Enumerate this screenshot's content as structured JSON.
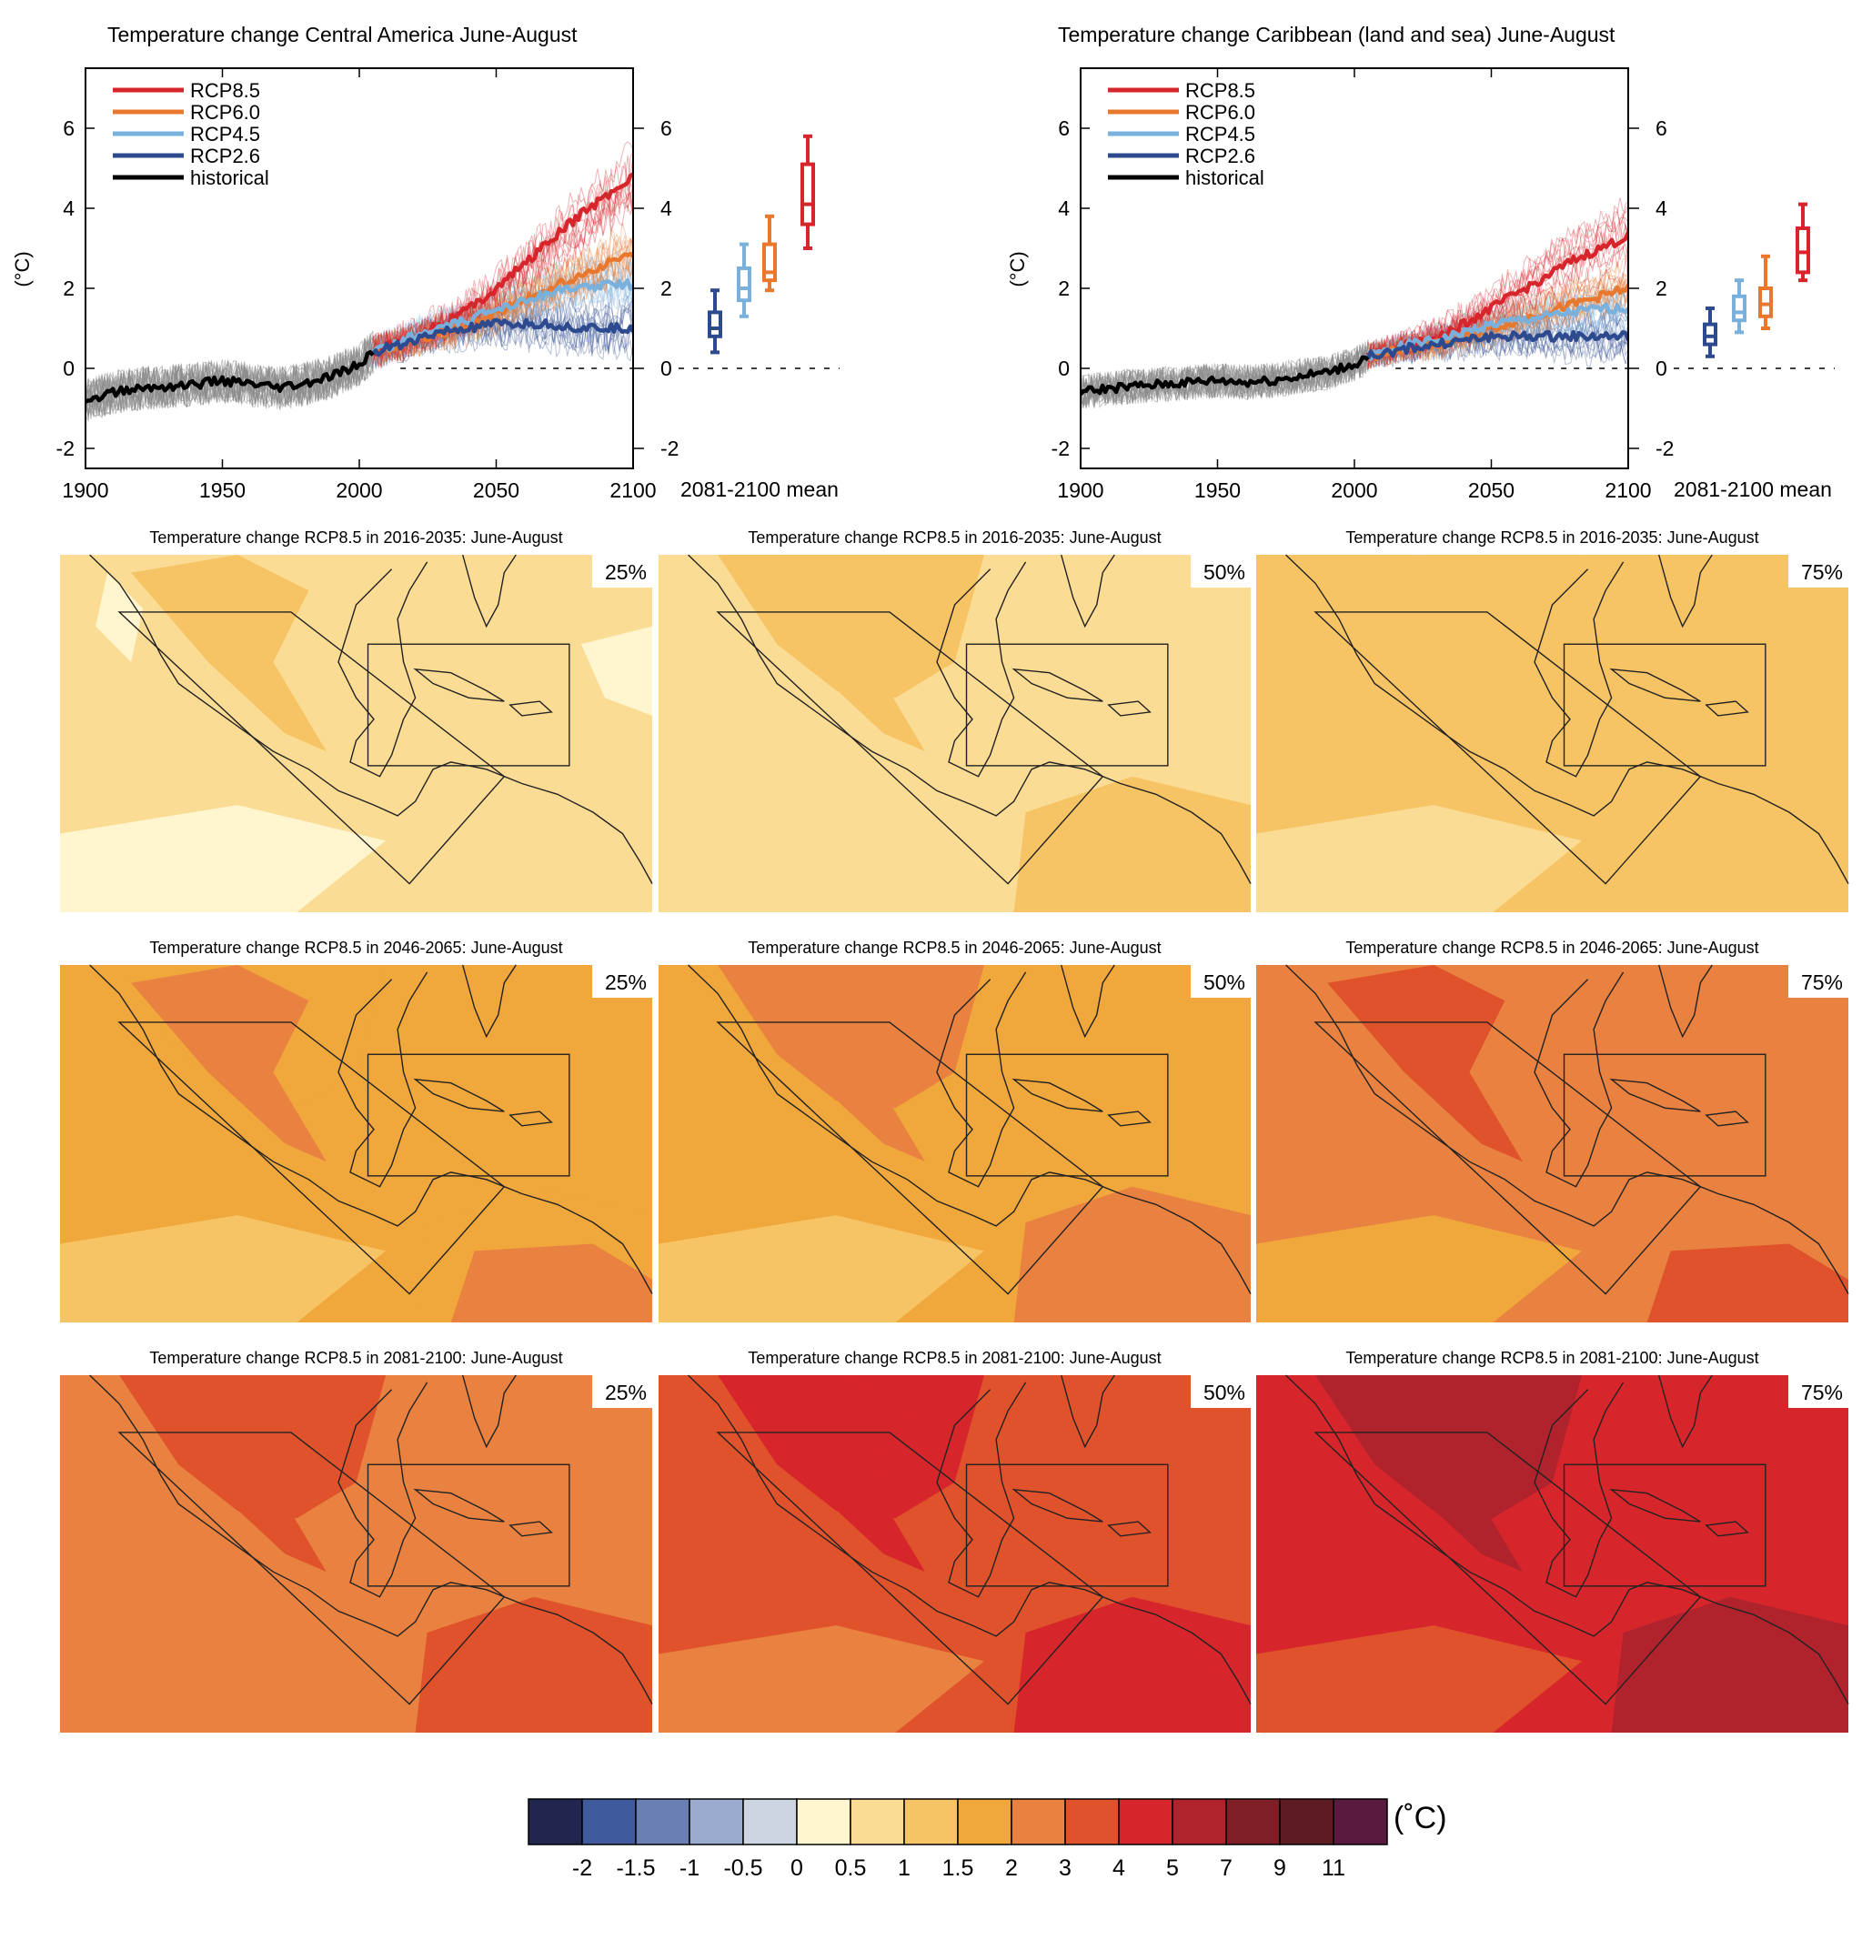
{
  "colors": {
    "rcp85": "#d7262b",
    "rcp60": "#e9782f",
    "rcp45": "#7ab0dc",
    "rcp26": "#2e4a8e",
    "historical": "#000000",
    "historical_spread": "#8a8a8a"
  },
  "chart_data": [
    {
      "type": "line",
      "title": "Temperature change Central America June-August",
      "ylabel": "(°C)",
      "xlabel": "",
      "xlim": [
        1900,
        2100
      ],
      "ylim": [
        -2.5,
        7.5
      ],
      "xticks": [
        1900,
        1950,
        2000,
        2050,
        2100
      ],
      "yticks": [
        -2,
        0,
        2,
        4,
        6
      ],
      "legend_position": "top-left",
      "series": [
        {
          "name": "RCP8.5",
          "key": "rcp85",
          "x": [
            2005,
            2020,
            2030,
            2040,
            2050,
            2060,
            2070,
            2080,
            2090,
            2100
          ],
          "values": [
            0.4,
            0.8,
            1.1,
            1.5,
            2.0,
            2.6,
            3.2,
            3.8,
            4.3,
            4.8
          ]
        },
        {
          "name": "RCP6.0",
          "key": "rcp60",
          "x": [
            2005,
            2020,
            2030,
            2040,
            2050,
            2060,
            2070,
            2080,
            2090,
            2100
          ],
          "values": [
            0.4,
            0.7,
            0.9,
            1.1,
            1.4,
            1.7,
            2.0,
            2.3,
            2.6,
            2.9
          ]
        },
        {
          "name": "RCP4.5",
          "key": "rcp45",
          "x": [
            2005,
            2020,
            2030,
            2040,
            2050,
            2060,
            2070,
            2080,
            2090,
            2100
          ],
          "values": [
            0.4,
            0.8,
            1.0,
            1.2,
            1.5,
            1.7,
            1.9,
            2.0,
            2.1,
            2.1
          ]
        },
        {
          "name": "RCP2.6",
          "key": "rcp26",
          "x": [
            2005,
            2020,
            2030,
            2040,
            2050,
            2060,
            2070,
            2080,
            2090,
            2100
          ],
          "values": [
            0.4,
            0.7,
            0.9,
            1.0,
            1.1,
            1.1,
            1.1,
            1.0,
            1.0,
            1.0
          ]
        },
        {
          "name": "historical",
          "key": "historical",
          "x": [
            1900,
            1910,
            1920,
            1930,
            1940,
            1950,
            1960,
            1970,
            1980,
            1990,
            2000,
            2005
          ],
          "values": [
            -0.8,
            -0.6,
            -0.5,
            -0.45,
            -0.4,
            -0.3,
            -0.4,
            -0.5,
            -0.4,
            -0.2,
            0.1,
            0.4
          ]
        }
      ],
      "boxplot": {
        "label": "2081-2100 mean",
        "boxes": [
          {
            "key": "rcp26",
            "min": 0.4,
            "q1": 0.8,
            "median": 1.0,
            "q3": 1.4,
            "max": 1.95
          },
          {
            "key": "rcp45",
            "min": 1.3,
            "q1": 1.7,
            "median": 2.0,
            "q3": 2.5,
            "max": 3.1
          },
          {
            "key": "rcp60",
            "min": 1.95,
            "q1": 2.2,
            "median": 2.4,
            "q3": 3.1,
            "max": 3.8
          },
          {
            "key": "rcp85",
            "min": 3.0,
            "q1": 3.6,
            "median": 4.1,
            "q3": 5.1,
            "max": 5.8
          }
        ]
      }
    },
    {
      "type": "line",
      "title": "Temperature change Caribbean (land and sea) June-August",
      "ylabel": "(°C)",
      "xlabel": "",
      "xlim": [
        1900,
        2100
      ],
      "ylim": [
        -2.5,
        7.5
      ],
      "xticks": [
        1900,
        1950,
        2000,
        2050,
        2100
      ],
      "yticks": [
        -2,
        0,
        2,
        4,
        6
      ],
      "legend_position": "top-left",
      "series": [
        {
          "name": "RCP8.5",
          "key": "rcp85",
          "x": [
            2005,
            2020,
            2030,
            2040,
            2050,
            2060,
            2070,
            2080,
            2090,
            2100
          ],
          "values": [
            0.3,
            0.6,
            0.8,
            1.1,
            1.5,
            1.9,
            2.3,
            2.7,
            3.0,
            3.3
          ]
        },
        {
          "name": "RCP6.0",
          "key": "rcp60",
          "x": [
            2005,
            2020,
            2030,
            2040,
            2050,
            2060,
            2070,
            2080,
            2090,
            2100
          ],
          "values": [
            0.3,
            0.5,
            0.6,
            0.8,
            1.0,
            1.2,
            1.4,
            1.6,
            1.8,
            2.0
          ]
        },
        {
          "name": "RCP4.5",
          "key": "rcp45",
          "x": [
            2005,
            2020,
            2030,
            2040,
            2050,
            2060,
            2070,
            2080,
            2090,
            2100
          ],
          "values": [
            0.3,
            0.6,
            0.7,
            0.9,
            1.1,
            1.2,
            1.3,
            1.4,
            1.5,
            1.5
          ]
        },
        {
          "name": "RCP2.6",
          "key": "rcp26",
          "x": [
            2005,
            2020,
            2030,
            2040,
            2050,
            2060,
            2070,
            2080,
            2090,
            2100
          ],
          "values": [
            0.3,
            0.5,
            0.6,
            0.7,
            0.8,
            0.8,
            0.8,
            0.8,
            0.8,
            0.8
          ]
        },
        {
          "name": "historical",
          "key": "historical",
          "x": [
            1900,
            1910,
            1920,
            1930,
            1940,
            1950,
            1960,
            1970,
            1980,
            1990,
            2000,
            2005
          ],
          "values": [
            -0.6,
            -0.5,
            -0.45,
            -0.4,
            -0.35,
            -0.3,
            -0.35,
            -0.3,
            -0.2,
            -0.1,
            0.1,
            0.3
          ]
        }
      ],
      "boxplot": {
        "label": "2081-2100 mean",
        "boxes": [
          {
            "key": "rcp26",
            "min": 0.3,
            "q1": 0.6,
            "median": 0.8,
            "q3": 1.1,
            "max": 1.5
          },
          {
            "key": "rcp45",
            "min": 0.9,
            "q1": 1.2,
            "median": 1.4,
            "q3": 1.8,
            "max": 2.2
          },
          {
            "key": "rcp60",
            "min": 1.0,
            "q1": 1.3,
            "median": 1.6,
            "q3": 2.0,
            "max": 2.8
          },
          {
            "key": "rcp85",
            "min": 2.2,
            "q1": 2.4,
            "median": 2.9,
            "q3": 3.5,
            "max": 4.1
          }
        ]
      }
    },
    {
      "type": "heatmap",
      "unit": "(˚C)",
      "maps": [
        {
          "title": "Temperature change RCP8.5 in 2016-2035: June-August",
          "percentile": "25%",
          "base": 0.8,
          "level": 0
        },
        {
          "title": "Temperature change RCP8.5 in 2016-2035: June-August",
          "percentile": "50%",
          "base": 0.9,
          "level": 0
        },
        {
          "title": "Temperature change RCP8.5 in 2016-2035: June-August",
          "percentile": "75%",
          "base": 1.0,
          "level": 0
        },
        {
          "title": "Temperature change RCP8.5 in 2046-2065: June-August",
          "percentile": "25%",
          "base": 1.5,
          "level": 1
        },
        {
          "title": "Temperature change RCP8.5 in 2046-2065: June-August",
          "percentile": "50%",
          "base": 1.8,
          "level": 1
        },
        {
          "title": "Temperature change RCP8.5 in 2046-2065: June-August",
          "percentile": "75%",
          "base": 2.2,
          "level": 1
        },
        {
          "title": "Temperature change RCP8.5 in 2081-2100: June-August",
          "percentile": "25%",
          "base": 2.5,
          "level": 2
        },
        {
          "title": "Temperature change RCP8.5 in 2081-2100: June-August",
          "percentile": "50%",
          "base": 3.2,
          "level": 2
        },
        {
          "title": "Temperature change RCP8.5 in 2081-2100: June-August",
          "percentile": "75%",
          "base": 4.0,
          "level": 2
        }
      ],
      "colorbar": {
        "labels": [
          "-2",
          "-1.5",
          "-1",
          "-0.5",
          "0",
          "0.5",
          "1",
          "1.5",
          "2",
          "3",
          "4",
          "5",
          "7",
          "9",
          "11"
        ],
        "colors": [
          "#22264f",
          "#3f5b9c",
          "#6a80b5",
          "#9aabcf",
          "#cdd5e2",
          "#fff6cf",
          "#fbdc95",
          "#f7c465",
          "#f0a73b",
          "#e98240",
          "#e0522c",
          "#d7262b",
          "#b0232d",
          "#7f1e24",
          "#5c1c22",
          "#5a1a40"
        ]
      }
    }
  ]
}
